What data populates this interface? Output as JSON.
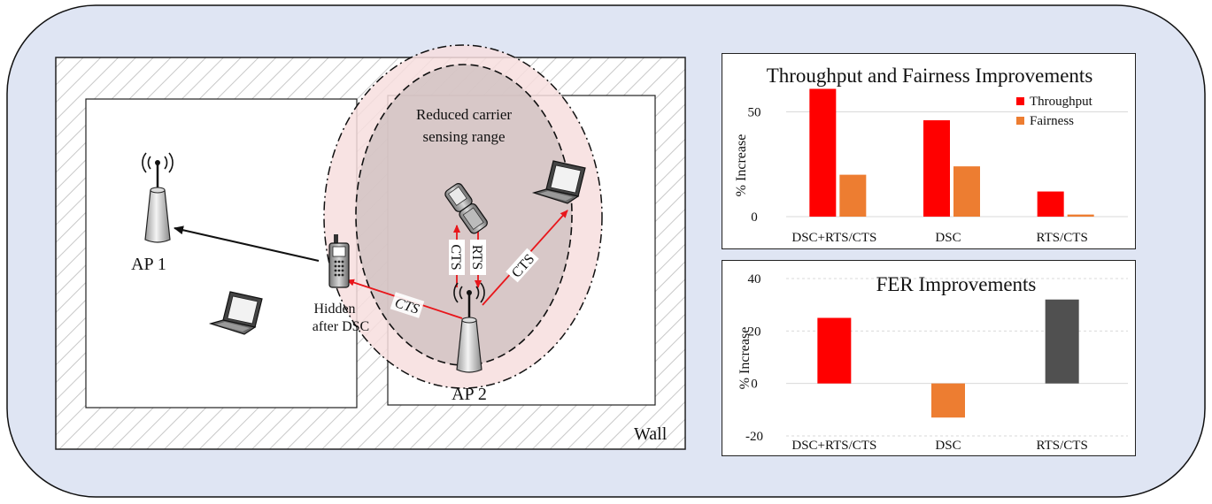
{
  "diagram": {
    "labels": {
      "ap1": "AP 1",
      "ap2": "AP 2",
      "wall": "Wall",
      "hidden_line1": "Hidden",
      "hidden_line2": "after DSC",
      "reduced_line1": "Reduced carrier",
      "reduced_line2": "sensing range",
      "cts_left": "CTS",
      "cts_vertical": "CTS",
      "rts_vertical": "RTS",
      "cts_right": "CTS"
    },
    "colors": {
      "background": "#dfe5f3",
      "signal_arrow": "#e8161b",
      "outer_range_fill": "#f7dede",
      "inner_range_fill": "#cdbfbf"
    },
    "icons": [
      "access-point-icon",
      "laptop-icon",
      "mobile-phone-icon",
      "flip-phone-icon"
    ]
  },
  "chart_data": [
    {
      "type": "bar",
      "title": "Throughput and Fairness Improvements",
      "ylabel": "% Increase",
      "categories": [
        "DSC+RTS/CTS",
        "DSC",
        "RTS/CTS"
      ],
      "series": [
        {
          "name": "Throughput",
          "color": "#ff0000",
          "values": [
            61,
            46,
            12
          ]
        },
        {
          "name": "Fairness",
          "color": "#ed7d31",
          "values": [
            20,
            24,
            1
          ]
        }
      ],
      "ylim": [
        0,
        65
      ],
      "yticks": [
        "0",
        "50"
      ],
      "legend": "top-right",
      "grid": true
    },
    {
      "type": "bar",
      "title": "FER Improvements",
      "ylabel": "% Increase",
      "categories": [
        "DSC+RTS/CTS",
        "DSC",
        "RTS/CTS"
      ],
      "values": [
        25,
        -13,
        32
      ],
      "colors": [
        "#ff0000",
        "#ed7d31",
        "#505050"
      ],
      "ylim": [
        -20,
        40
      ],
      "yticks": [
        "-20",
        "0",
        "20",
        "40"
      ],
      "legend": "none",
      "grid": true
    }
  ]
}
